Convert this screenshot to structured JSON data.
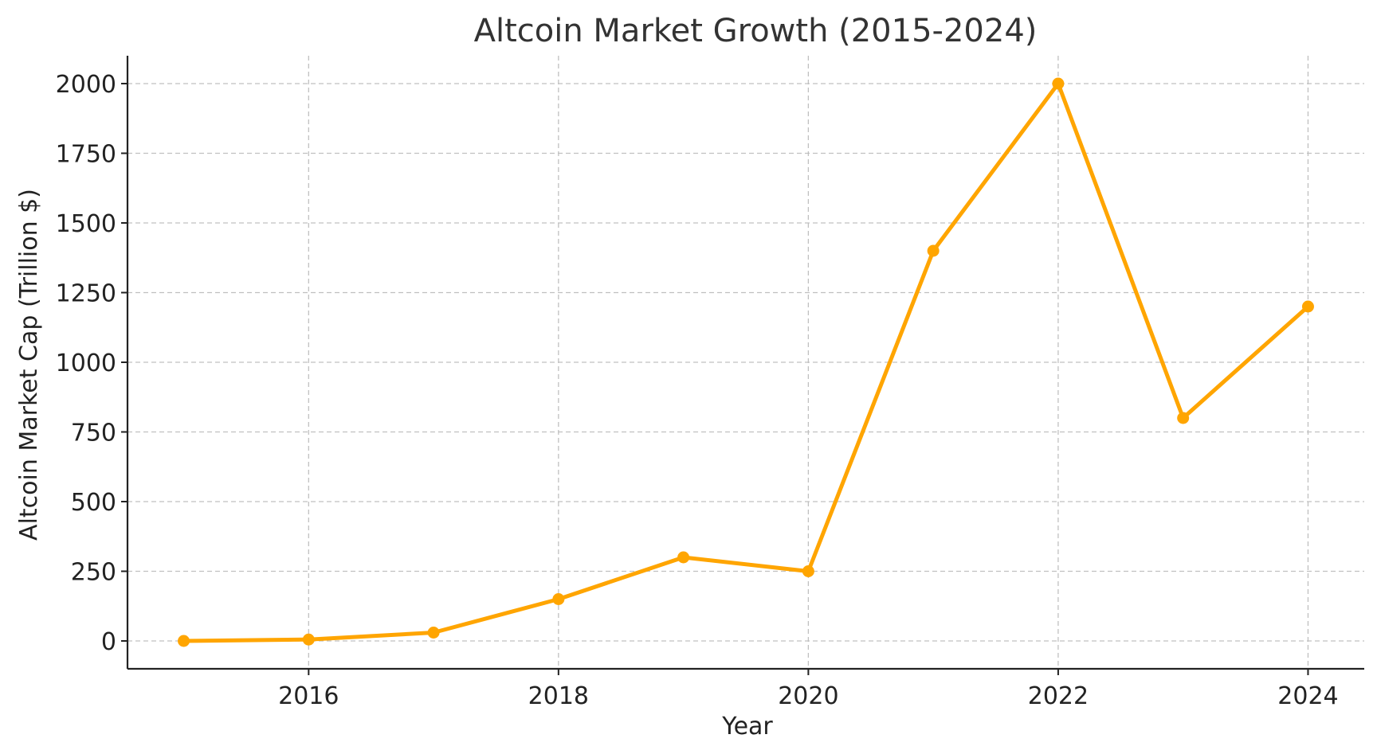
{
  "chart_data": {
    "type": "line",
    "title": "Altcoin Market Growth (2015-2024)",
    "xlabel": "Year",
    "ylabel": "Altcoin Market Cap (Trillion $)",
    "x": [
      2015,
      2016,
      2017,
      2018,
      2019,
      2020,
      2021,
      2022,
      2023,
      2024
    ],
    "series": [
      {
        "values": [
          0,
          5,
          30,
          150,
          300,
          250,
          1400,
          2000,
          800,
          1200
        ],
        "color": "#FFA500",
        "marker": "circle"
      }
    ],
    "xlim": [
      2014.55,
      2024.45
    ],
    "ylim": [
      -100,
      2100
    ],
    "xticks": [
      2016,
      2018,
      2020,
      2022,
      2024
    ],
    "yticks": [
      0,
      250,
      500,
      750,
      1000,
      1250,
      1500,
      1750,
      2000
    ],
    "grid": true,
    "legend": "none"
  }
}
